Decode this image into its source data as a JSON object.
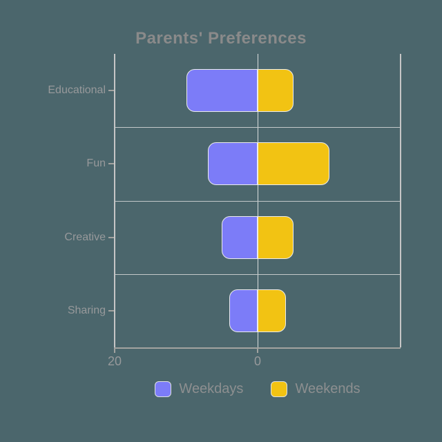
{
  "background_color": "#4B666C",
  "text_colors": {
    "title": "#8A8A8A",
    "axis_labels": "#97999B",
    "legend": "#8D8F90"
  },
  "line_colors": {
    "gridline": "#C4C9CA",
    "zero_line": "#DCE0E0",
    "plot_border": "#C6C6C6",
    "axis_line": "#A3A3A0",
    "bar_border": "#ECECEC"
  },
  "chart_data": {
    "type": "bar",
    "orientation": "horizontal",
    "diverging": true,
    "title": "Parents' Preferences",
    "categories": [
      "Educational",
      "Fun",
      "Creative",
      "Sharing"
    ],
    "series": [
      {
        "name": "Weekdays",
        "color": "#7C7CF8",
        "side": "left",
        "values": [
          10,
          7,
          5,
          4
        ]
      },
      {
        "name": "Weekends",
        "color": "#F2C313",
        "side": "right",
        "values": [
          5,
          10,
          5,
          4
        ]
      }
    ],
    "x_axis": {
      "ticks": [
        {
          "label": "20",
          "value": 20,
          "side": "left"
        },
        {
          "label": "0",
          "value": 0,
          "side": "center"
        }
      ],
      "max_each_side": 20,
      "grid": true
    },
    "legend": {
      "position": "bottom",
      "entries": [
        "Weekdays",
        "Weekends"
      ]
    }
  }
}
